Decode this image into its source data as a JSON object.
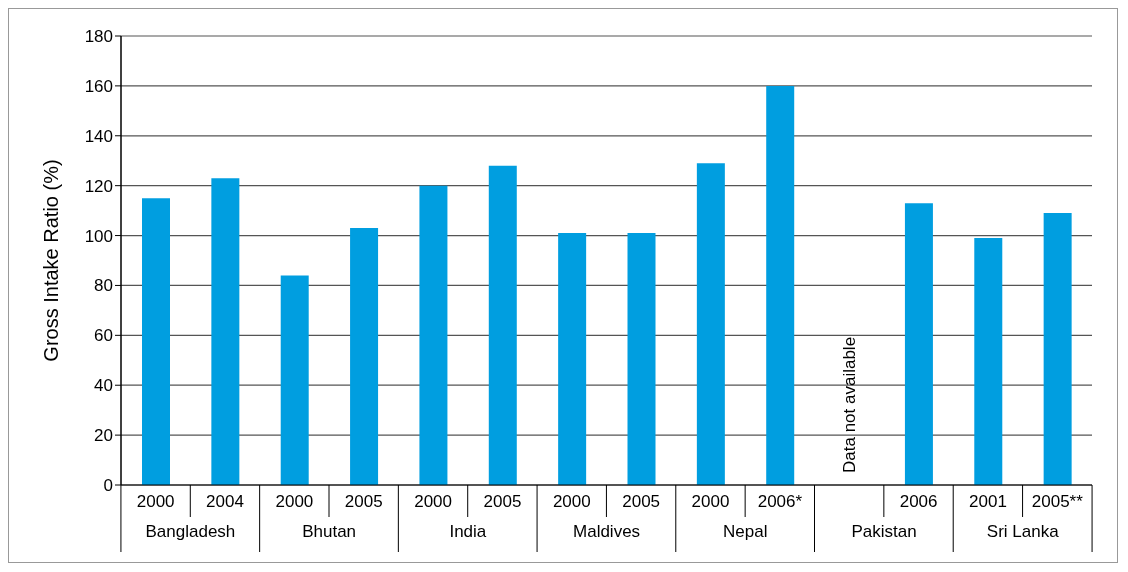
{
  "chart_data": {
    "type": "bar",
    "ylabel": "Gross Intake Ratio (%)",
    "categories": [
      "2000",
      "2004",
      "2000",
      "2005",
      "2000",
      "2005",
      "2000",
      "2005",
      "2000",
      "2006*",
      null,
      "2006",
      "2001",
      "2005**"
    ],
    "values": [
      115,
      123,
      84,
      103,
      120,
      128,
      101,
      101,
      129,
      160,
      null,
      113,
      99,
      109
    ],
    "color": "#009ee0",
    "ylim": [
      0,
      180
    ],
    "yticks": [
      0,
      20,
      40,
      60,
      80,
      100,
      120,
      140,
      160,
      180
    ],
    "grid": "y",
    "annotations": [
      "Bangladesh",
      "Bhutan",
      "India",
      "Maldives",
      "Nepal",
      "Pakistan",
      "Sri Lanka",
      "Data not available"
    ]
  }
}
